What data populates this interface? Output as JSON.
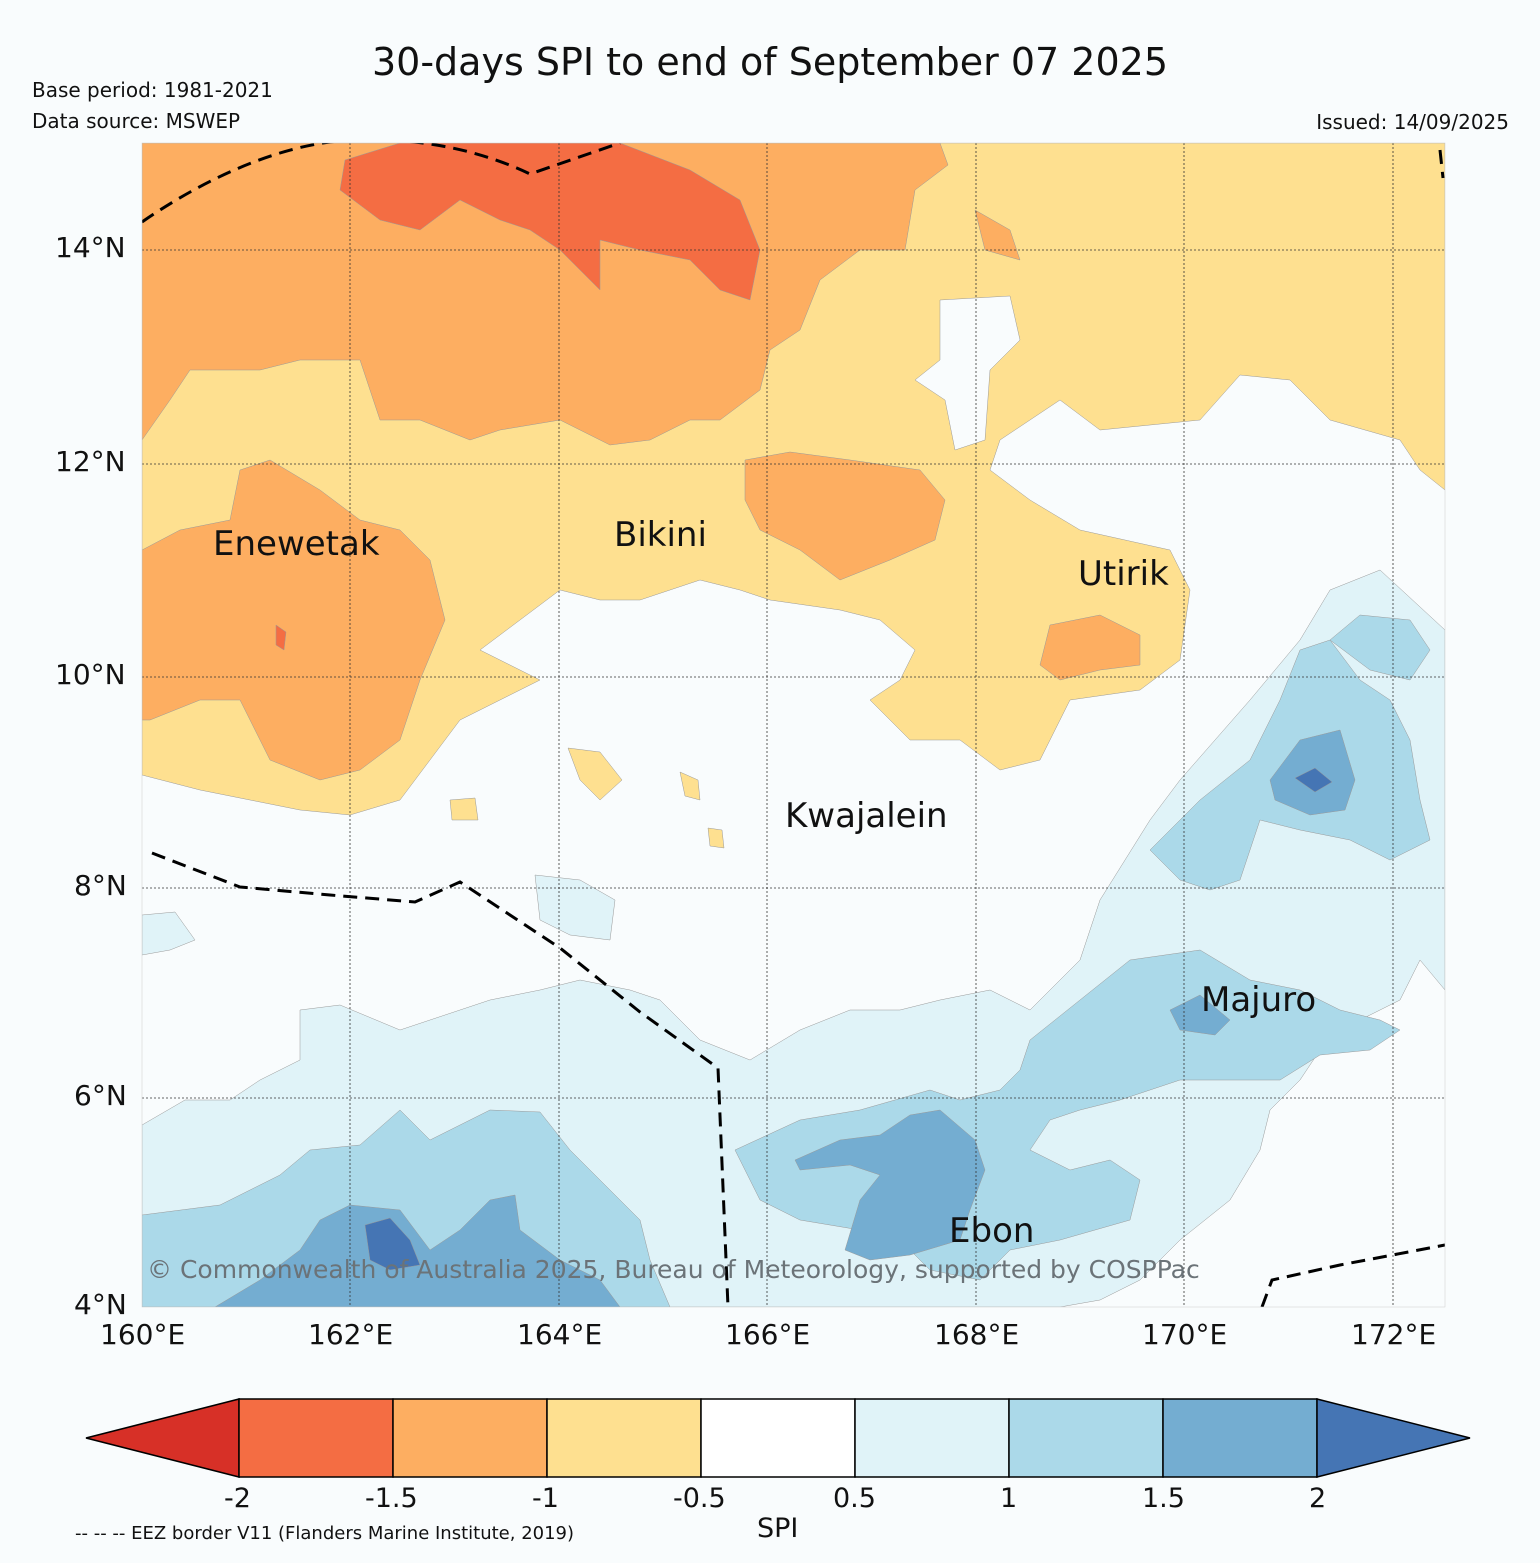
{
  "title": "30-days SPI to end of September 07 2025",
  "base_period": "Base period: 1981-2021",
  "data_source": "Data source: MSWEP",
  "issued": "Issued: 14/09/2025",
  "copyright": "© Commonwealth of Australia 2025, Bureau of Meteorology, supported by COSPPac",
  "eez_note": "-- -- -- EEZ border V11 (Flanders Marine Institute, 2019)",
  "colorbar": {
    "label": "SPI",
    "ticks": [
      "-2",
      "-1.5",
      "-1",
      "-0.5",
      "0.5",
      "1",
      "1.5",
      "2"
    ],
    "colors": [
      "#d73027",
      "#f46d43",
      "#fdae61",
      "#fee090",
      "#f9fcfd",
      "#e0f3f8",
      "#abd9e9",
      "#74add1",
      "#4575b4"
    ]
  },
  "axes": {
    "lon_labels": [
      "160°E",
      "162°E",
      "164°E",
      "166°E",
      "168°E",
      "170°E",
      "172°E"
    ],
    "lat_labels": [
      "14°N",
      "12°N",
      "10°N",
      "8°N",
      "6°N",
      "4°N"
    ]
  },
  "places": [
    "Enewetak",
    "Bikini",
    "Utirik",
    "Kwajalein",
    "Majuro",
    "Ebon"
  ]
}
